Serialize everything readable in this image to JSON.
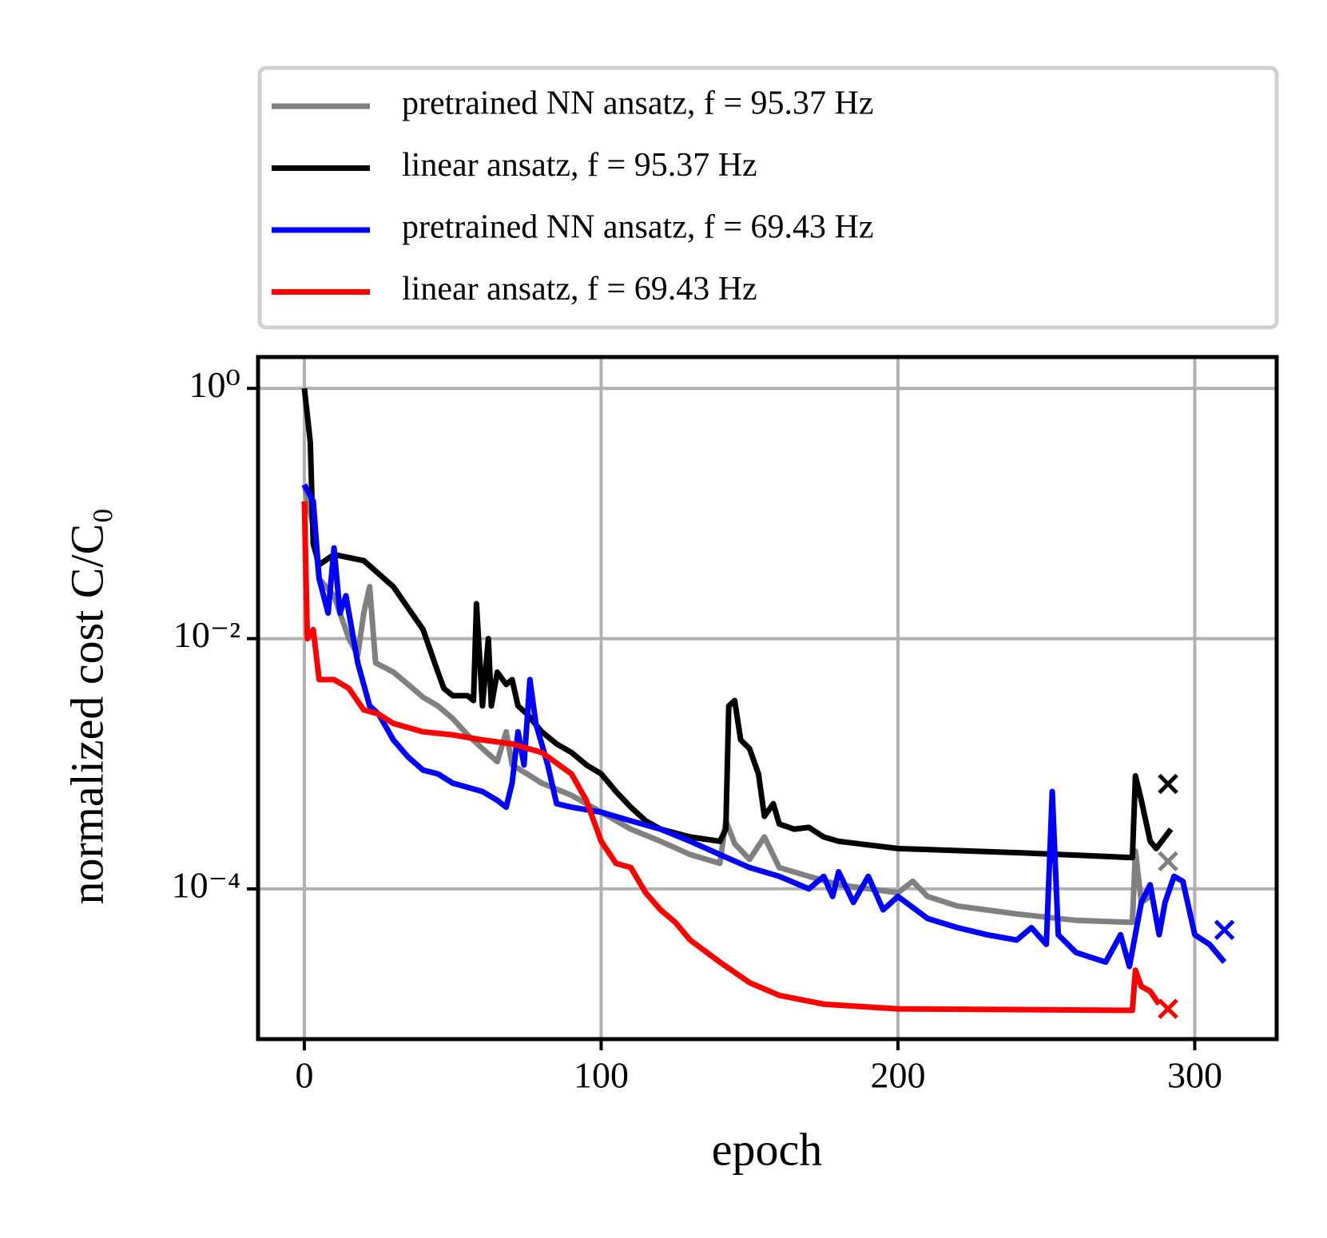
{
  "chart_data": {
    "type": "line",
    "xlabel": "epoch",
    "ylabel": "normalized cost C/C₀",
    "xlim": [
      -15.6,
      327.6
    ],
    "ylim": [
      6.3e-06,
      1.78
    ],
    "yscale": "log",
    "xticks": [
      0,
      100,
      200,
      300
    ],
    "yticks": [
      {
        "value": 1,
        "label": "10⁰"
      },
      {
        "value": 0.01,
        "label": "10⁻²"
      },
      {
        "value": 0.0001,
        "label": "10⁻⁴"
      }
    ],
    "grid": true,
    "legend": "top",
    "series": [
      {
        "name": "pretrained NN ansatz, f = 95.37 Hz",
        "color": "#808080",
        "x": [
          0,
          3,
          5,
          10,
          15,
          18,
          20,
          22,
          24,
          30,
          35,
          40,
          45,
          50,
          55,
          60,
          65,
          68,
          70,
          75,
          80,
          90,
          100,
          110,
          120,
          130,
          140,
          142,
          145,
          150,
          155,
          160,
          170,
          180,
          200,
          205,
          210,
          220,
          240,
          260,
          279,
          280,
          282,
          285
        ],
        "values": [
          0.17,
          0.078,
          0.03,
          0.022,
          0.01,
          0.0074,
          0.016,
          0.026,
          0.0064,
          0.0054,
          0.0043,
          0.0034,
          0.0029,
          0.0023,
          0.0017,
          0.00132,
          0.00104,
          0.0018,
          0.00098,
          0.00083,
          0.0007,
          0.00056,
          0.00041,
          0.0003,
          0.00024,
          0.000188,
          0.00016,
          0.00035,
          0.00023,
          0.000172,
          0.00026,
          0.000148,
          0.000126,
          0.000108,
          9.3e-05,
          0.000115,
          8.7e-05,
          7.3e-05,
          6.3e-05,
          5.6e-05,
          5.4e-05,
          0.0002,
          7.8e-05,
          8.7e-05
        ],
        "final_marker": {
          "x": 291,
          "value": 0.000166
        }
      },
      {
        "name": "linear ansatz, f = 95.37 Hz",
        "color": "#000000",
        "x": [
          0,
          2,
          3,
          5,
          10,
          20,
          30,
          40,
          45,
          47,
          50,
          55,
          57,
          58,
          60,
          62,
          63,
          65,
          68,
          70,
          72,
          75,
          80,
          85,
          90,
          95,
          100,
          105,
          110,
          115,
          120,
          130,
          140,
          142,
          143,
          145,
          147,
          150,
          153,
          155,
          158,
          160,
          165,
          170,
          175,
          180,
          200,
          240,
          279,
          280,
          282,
          285,
          287,
          290,
          292
        ],
        "values": [
          1.0,
          0.37,
          0.057,
          0.039,
          0.047,
          0.042,
          0.026,
          0.0118,
          0.0054,
          0.004,
          0.0035,
          0.0035,
          0.0032,
          0.019,
          0.0029,
          0.01,
          0.0029,
          0.0054,
          0.0043,
          0.0047,
          0.0029,
          0.0025,
          0.0018,
          0.00144,
          0.00123,
          0.00098,
          0.00083,
          0.0006,
          0.00045,
          0.00035,
          0.0003,
          0.00026,
          0.00024,
          0.0003,
          0.0029,
          0.0032,
          0.00155,
          0.00132,
          0.00083,
          0.00038,
          0.00048,
          0.00033,
          0.0003,
          0.00031,
          0.00026,
          0.00024,
          0.00021,
          0.000195,
          0.000178,
          0.0008,
          0.00051,
          0.00024,
          0.00021,
          0.00026,
          0.0003
        ],
        "final_marker": {
          "x": 291,
          "value": 0.00069
        }
      },
      {
        "name": "pretrained NN ansatz, f = 69.43 Hz",
        "color": "#0000ff",
        "x": [
          0,
          3,
          5,
          8,
          10,
          12,
          14,
          16,
          18,
          22,
          25,
          30,
          35,
          40,
          45,
          50,
          60,
          65,
          68,
          70,
          72,
          74,
          76,
          78,
          82,
          85,
          90,
          100,
          110,
          120,
          130,
          140,
          150,
          160,
          170,
          175,
          178,
          180,
          185,
          190,
          195,
          200,
          210,
          220,
          230,
          240,
          245,
          250,
          252,
          254,
          260,
          270,
          275,
          278,
          282,
          285,
          288,
          290,
          293,
          296,
          300,
          305,
          310
        ],
        "values": [
          0.17,
          0.125,
          0.03,
          0.016,
          0.053,
          0.016,
          0.022,
          0.0118,
          0.0064,
          0.0029,
          0.0025,
          0.00155,
          0.00113,
          0.00089,
          0.00083,
          0.0007,
          0.0006,
          0.00051,
          0.00045,
          0.0007,
          0.0018,
          0.00098,
          0.0047,
          0.0021,
          0.00098,
          0.00048,
          0.00045,
          0.00041,
          0.00035,
          0.0003,
          0.00024,
          0.000188,
          0.000148,
          0.000126,
          0.0001,
          0.000126,
          8.7e-05,
          0.000137,
          7.8e-05,
          0.000126,
          6.8e-05,
          8.7e-05,
          5.8e-05,
          4.9e-05,
          4.3e-05,
          3.9e-05,
          4.9e-05,
          3.6e-05,
          0.0006,
          4.3e-05,
          3.1e-05,
          2.6e-05,
          4.3e-05,
          2.4e-05,
          7.8e-05,
          0.000108,
          4.3e-05,
          7.8e-05,
          0.000126,
          0.000115,
          4.3e-05,
          3.6e-05,
          2.6e-05
        ],
        "final_marker": {
          "x": 310,
          "value": 4.7e-05
        }
      },
      {
        "name": "linear ansatz, f = 69.43 Hz",
        "color": "#ff0000",
        "x": [
          0,
          1,
          3,
          5,
          10,
          15,
          20,
          25,
          30,
          40,
          50,
          60,
          70,
          80,
          90,
          95,
          100,
          105,
          110,
          115,
          120,
          125,
          130,
          140,
          150,
          160,
          175,
          200,
          279,
          280,
          282,
          285,
          288
        ],
        "values": [
          0.125,
          0.01,
          0.0118,
          0.0047,
          0.0047,
          0.004,
          0.0027,
          0.0025,
          0.0021,
          0.0018,
          0.0017,
          0.00155,
          0.00144,
          0.00123,
          0.00083,
          0.00051,
          0.00024,
          0.00016,
          0.000148,
          9.3e-05,
          6.8e-05,
          5.4e-05,
          3.9e-05,
          2.6e-05,
          1.78e-05,
          1.41e-05,
          1.2e-05,
          1.1e-05,
          1.07e-05,
          2.24e-05,
          1.66e-05,
          1.52e-05,
          1.2e-05
        ],
        "final_marker": {
          "x": 291,
          "value": 1.1e-05
        }
      }
    ]
  }
}
